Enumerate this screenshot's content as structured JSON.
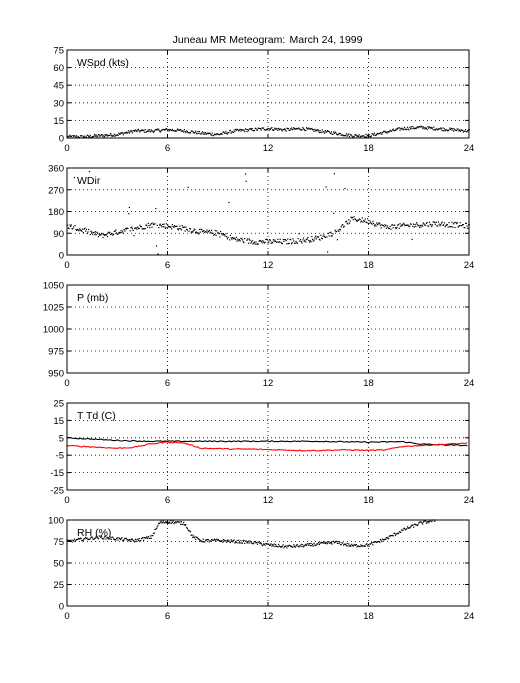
{
  "title": {
    "station": "Juneau MR Meteogram:",
    "date": "March 24, 1999"
  },
  "colors": {
    "axes": "#000000",
    "grid": "#000000",
    "temperature": "#000000",
    "dewpoint": "#ff0000"
  },
  "chart_data": [
    {
      "type": "scatter",
      "label": "WSpd (kts)",
      "xlim": [
        0,
        24
      ],
      "xticks": [
        0,
        6,
        12,
        18,
        24
      ],
      "ylim": [
        0,
        75
      ],
      "yticks": [
        0,
        15,
        30,
        45,
        60,
        75
      ],
      "grid": true,
      "series": [
        {
          "color": "#000000",
          "x": [
            0,
            1,
            2,
            3,
            4,
            5,
            6,
            7,
            8,
            9,
            10,
            11,
            12,
            13,
            14,
            15,
            16,
            17,
            18,
            19,
            20,
            21,
            22,
            23,
            24
          ],
          "y": [
            1,
            1,
            2,
            3,
            6,
            6,
            7,
            6,
            4,
            3,
            6,
            7,
            8,
            7,
            8,
            6,
            4,
            2,
            2,
            5,
            8,
            9,
            8,
            7,
            6
          ]
        }
      ]
    },
    {
      "type": "scatter",
      "label": "WDir",
      "xlim": [
        0,
        24
      ],
      "xticks": [
        0,
        6,
        12,
        18,
        24
      ],
      "ylim": [
        0,
        360
      ],
      "yticks": [
        0,
        90,
        180,
        270,
        360
      ],
      "grid": true,
      "series": [
        {
          "color": "#000000",
          "x": [
            0,
            1,
            2,
            3,
            4,
            5,
            6,
            7,
            8,
            9,
            10,
            11,
            12,
            13,
            14,
            15,
            16,
            17,
            18,
            19,
            20,
            21,
            22,
            23,
            24
          ],
          "y": [
            120,
            100,
            80,
            95,
            110,
            125,
            120,
            110,
            95,
            90,
            65,
            55,
            55,
            55,
            60,
            70,
            95,
            150,
            140,
            115,
            120,
            125,
            130,
            125,
            120
          ]
        }
      ]
    },
    {
      "type": "line",
      "label": "P (mb)",
      "xlim": [
        0,
        24
      ],
      "xticks": [
        0,
        6,
        12,
        18,
        24
      ],
      "ylim": [
        950,
        1050
      ],
      "yticks": [
        950,
        975,
        1000,
        1025,
        1050
      ],
      "grid": true,
      "series": []
    },
    {
      "type": "line",
      "label": "T Td (C)",
      "xlim": [
        0,
        24
      ],
      "xticks": [
        0,
        6,
        12,
        18,
        24
      ],
      "ylim": [
        -25,
        25
      ],
      "yticks": [
        -25,
        -15,
        -5,
        5,
        15,
        25
      ],
      "grid": true,
      "series": [
        {
          "color": "#000000",
          "x": [
            0,
            1,
            2,
            3,
            4,
            5,
            6,
            7,
            8,
            9,
            10,
            11,
            12,
            13,
            14,
            15,
            16,
            17,
            18,
            19,
            20,
            21,
            22,
            23,
            24
          ],
          "y": [
            5,
            4.5,
            4,
            3.5,
            3.2,
            3,
            3,
            3,
            3,
            3,
            3,
            3,
            3,
            3,
            3,
            3,
            2.8,
            2.6,
            2.5,
            2.6,
            2.8,
            1.5,
            1,
            0.8,
            0.5
          ]
        },
        {
          "color": "#ff0000",
          "x": [
            0,
            1,
            2,
            3,
            4,
            5,
            6,
            7,
            8,
            9,
            10,
            11,
            12,
            13,
            14,
            15,
            16,
            17,
            18,
            19,
            20,
            21,
            22,
            23,
            24
          ],
          "y": [
            0.5,
            0,
            -0.5,
            -1,
            -0.5,
            1.5,
            2.5,
            2,
            -1,
            -1.2,
            -1.5,
            -1.5,
            -1.8,
            -2,
            -2.3,
            -2.3,
            -2,
            -2,
            -2.2,
            -2,
            0,
            0.5,
            1,
            1.5,
            2
          ]
        }
      ]
    },
    {
      "type": "scatter",
      "label": "RH (%)",
      "xlim": [
        0,
        24
      ],
      "xticks": [
        0,
        6,
        12,
        18,
        24
      ],
      "ylim": [
        0,
        100
      ],
      "yticks": [
        0,
        25,
        50,
        75,
        100
      ],
      "grid": true,
      "series": [
        {
          "color": "#000000",
          "x": [
            0,
            1,
            2,
            3,
            4,
            5,
            5.5,
            6,
            7,
            7.5,
            8,
            9,
            10,
            11,
            12,
            13,
            14,
            15,
            16,
            17,
            18,
            19,
            20,
            21,
            22
          ],
          "y": [
            75,
            78,
            80,
            78,
            76,
            80,
            97,
            98,
            96,
            80,
            76,
            76,
            75,
            74,
            71,
            69,
            70,
            72,
            74,
            70,
            71,
            78,
            88,
            96,
            100
          ]
        }
      ]
    }
  ]
}
